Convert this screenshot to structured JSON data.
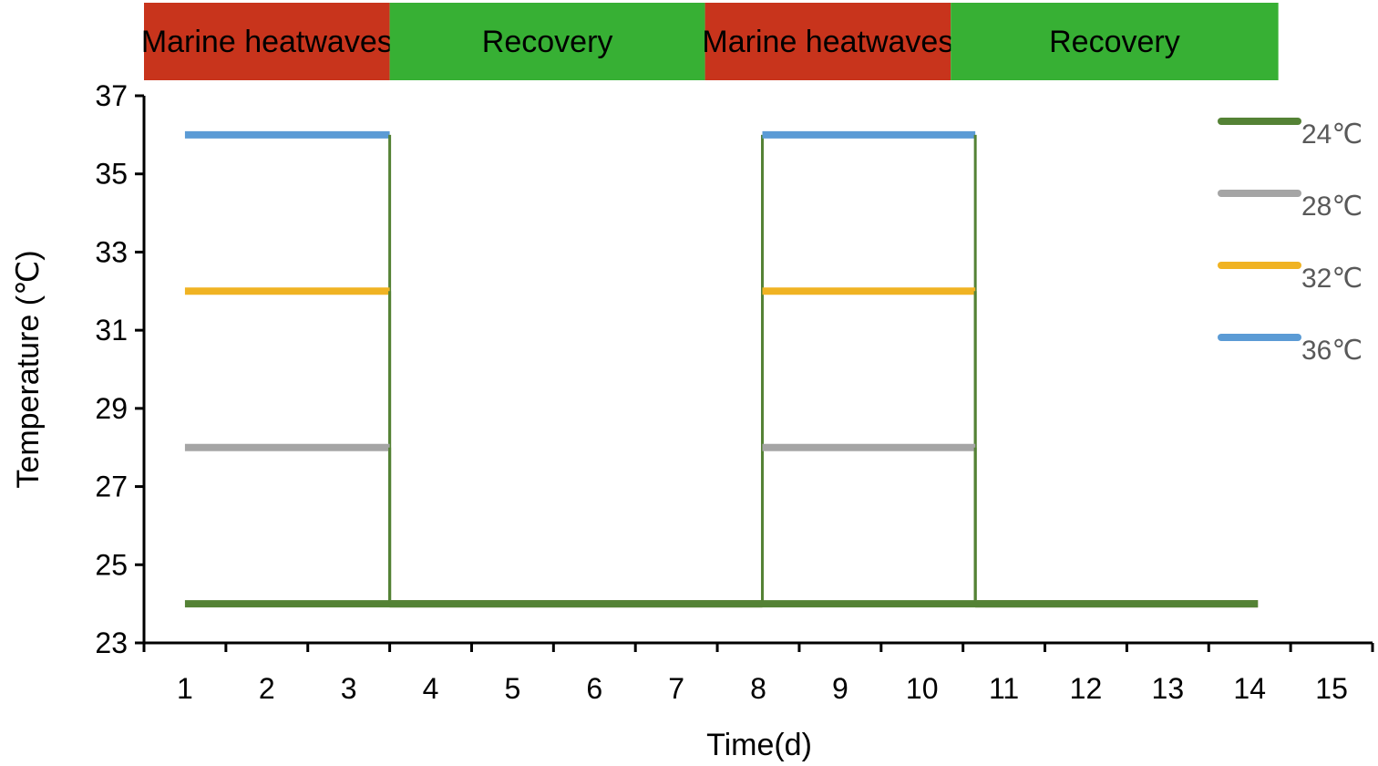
{
  "chart_data": {
    "type": "line",
    "xlabel": "Time(d)",
    "ylabel": "Temperature (℃)",
    "xlim": [
      0.5,
      15.5
    ],
    "ylim": [
      23,
      37
    ],
    "x_ticks": [
      1,
      2,
      3,
      4,
      5,
      6,
      7,
      8,
      9,
      10,
      11,
      12,
      13,
      14,
      15
    ],
    "y_ticks": [
      23,
      25,
      27,
      29,
      31,
      33,
      35,
      37
    ],
    "phases": [
      {
        "label": "Marine heatwaves",
        "start": 0.5,
        "end": 3.5,
        "color": "#c8341c"
      },
      {
        "label": "Recovery",
        "start": 3.5,
        "end": 7.35,
        "color": "#37b034"
      },
      {
        "label": "Marine heatwaves",
        "start": 7.35,
        "end": 10.35,
        "color": "#c8341c"
      },
      {
        "label": "Recovery",
        "start": 10.35,
        "end": 14.35,
        "color": "#37b034"
      }
    ],
    "series": [
      {
        "name": "24℃",
        "color": "#548235",
        "points": [
          [
            1,
            24
          ],
          [
            14.1,
            24
          ]
        ]
      },
      {
        "name": "28℃",
        "color": "#a5a5a5",
        "points": [
          [
            1,
            28
          ],
          [
            3.5,
            28
          ],
          [
            3.5,
            24
          ],
          [
            8.05,
            24
          ],
          [
            8.05,
            28
          ],
          [
            10.65,
            28
          ],
          [
            10.65,
            24
          ],
          [
            14.1,
            24
          ]
        ]
      },
      {
        "name": "32℃",
        "color": "#f0b323",
        "points": [
          [
            1,
            32
          ],
          [
            3.5,
            32
          ],
          [
            3.5,
            24
          ],
          [
            8.05,
            24
          ],
          [
            8.05,
            32
          ],
          [
            10.65,
            32
          ],
          [
            10.65,
            24
          ],
          [
            14.1,
            24
          ]
        ]
      },
      {
        "name": "36℃",
        "color": "#5b9bd5",
        "points": [
          [
            1,
            36
          ],
          [
            3.5,
            36
          ],
          [
            3.5,
            24
          ],
          [
            8.05,
            24
          ],
          [
            8.05,
            36
          ],
          [
            10.65,
            36
          ],
          [
            10.65,
            24
          ],
          [
            14.1,
            24
          ]
        ]
      }
    ],
    "legend_position": "top-right",
    "grid": false
  }
}
